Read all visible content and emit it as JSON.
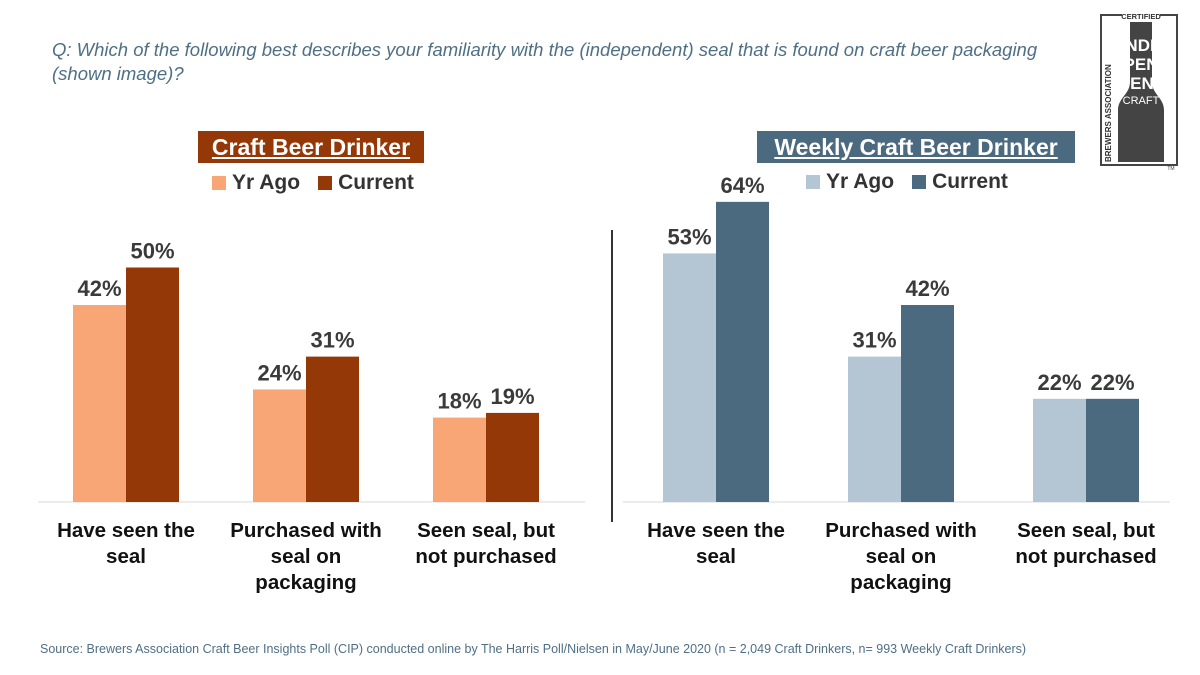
{
  "question": "Q:  Which of the following best describes your familiarity with the (independent) seal that is found on craft beer packaging (shown image)?",
  "logo": {
    "top_text": "CERTIFIED",
    "side_text": "BREWERS ASSOCIATION",
    "lines": [
      "INDE",
      "PEN",
      "DENT",
      "CRAFT"
    ],
    "tm": "TM",
    "icon": "beer-bottle-seal-icon"
  },
  "source": "Source:  Brewers Association Craft Beer Insights Poll (CIP) conducted online by The Harris Poll/Nielsen  in May/June 2020 (n =  2,049 Craft Drinkers, n= 993 Weekly Craft Drinkers)",
  "colors": {
    "craft_light": "#f8a676",
    "craft_dark": "#953807",
    "weekly_light": "#b4c5d3",
    "weekly_dark": "#4b697f",
    "craft_title_bg": "#953807",
    "weekly_title_bg": "#4b697f"
  },
  "chart_data": [
    {
      "type": "bar",
      "title": "Craft Beer Drinker",
      "categories": [
        "Have seen the seal",
        "Purchased with seal on packaging",
        "Seen seal, but not purchased"
      ],
      "series": [
        {
          "name": "Yr Ago",
          "values": [
            42,
            24,
            18
          ],
          "color": "#f8a676"
        },
        {
          "name": "Current",
          "values": [
            50,
            31,
            19
          ],
          "color": "#953807"
        }
      ],
      "value_format": "%",
      "legend": "top",
      "ylim": [
        0,
        68
      ],
      "grid": false
    },
    {
      "type": "bar",
      "title": "Weekly Craft Beer Drinker",
      "categories": [
        "Have seen the seal",
        "Purchased with seal on packaging",
        "Seen seal, but not purchased"
      ],
      "series": [
        {
          "name": "Yr Ago",
          "values": [
            53,
            31,
            22
          ],
          "color": "#b4c5d3"
        },
        {
          "name": "Current",
          "values": [
            64,
            42,
            22
          ],
          "color": "#4b697f"
        }
      ],
      "value_format": "%",
      "legend": "top",
      "ylim": [
        0,
        68
      ],
      "grid": false
    }
  ]
}
